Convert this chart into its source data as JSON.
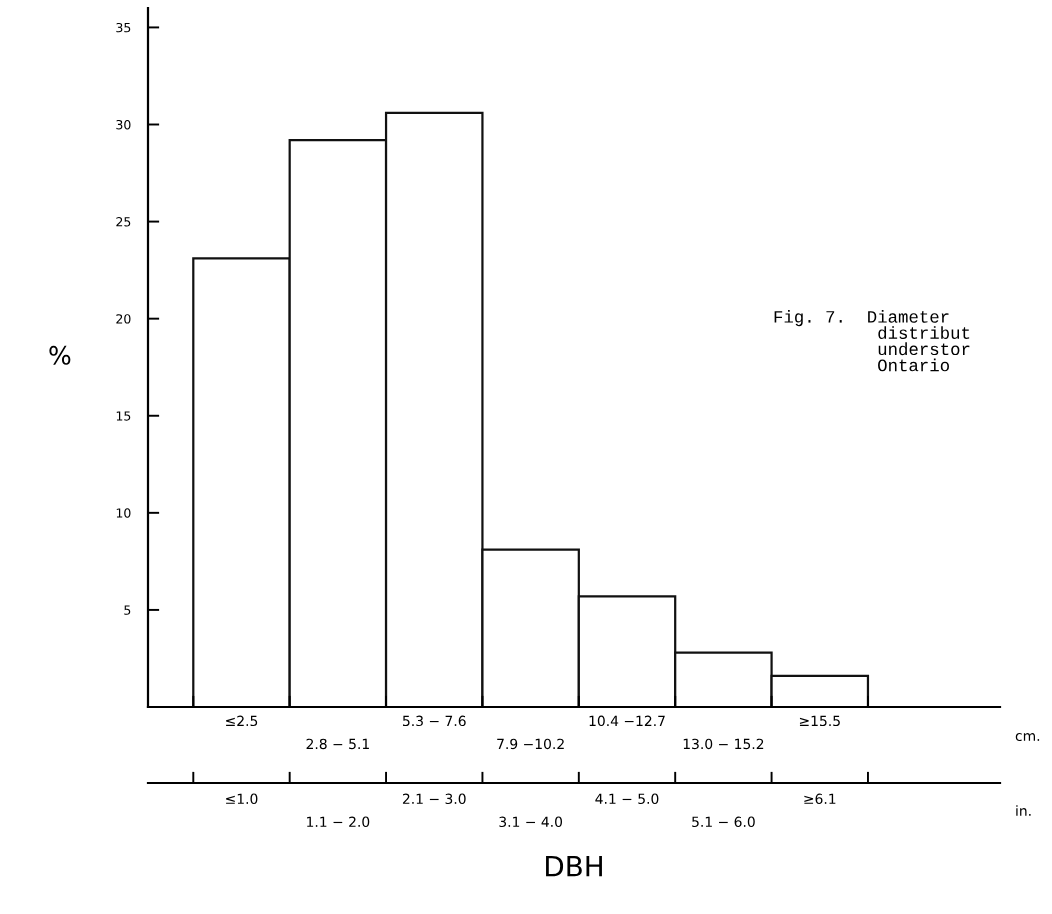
{
  "chart_data": {
    "type": "bar",
    "xlabel": "DBH",
    "ylabel": "%",
    "categories": [
      "≤2.5",
      "2.8 − 5.1",
      "5.3 − 7.6",
      "7.9 −10.2",
      "10.4 −12.7",
      "13.0 − 15.2",
      "≥15.5"
    ],
    "values": [
      23.1,
      29.2,
      30.6,
      8.1,
      5.7,
      2.8,
      1.6
    ],
    "color": "#ffffff",
    "ylim": [
      0,
      36
    ],
    "yticks": [
      5,
      10,
      15,
      20,
      25,
      30,
      35
    ],
    "grid": false,
    "annotations": [
      "cm.",
      "in.",
      "Fig. 7.  Diameter\n          distribut\n          understor\n          Ontario",
      "≤1.0",
      "1.1 − 2.0",
      "2.1 − 3.0",
      "3.1 − 4.0",
      "4.1 − 5.0",
      "5.1 − 6.0",
      "≥6.1"
    ]
  }
}
